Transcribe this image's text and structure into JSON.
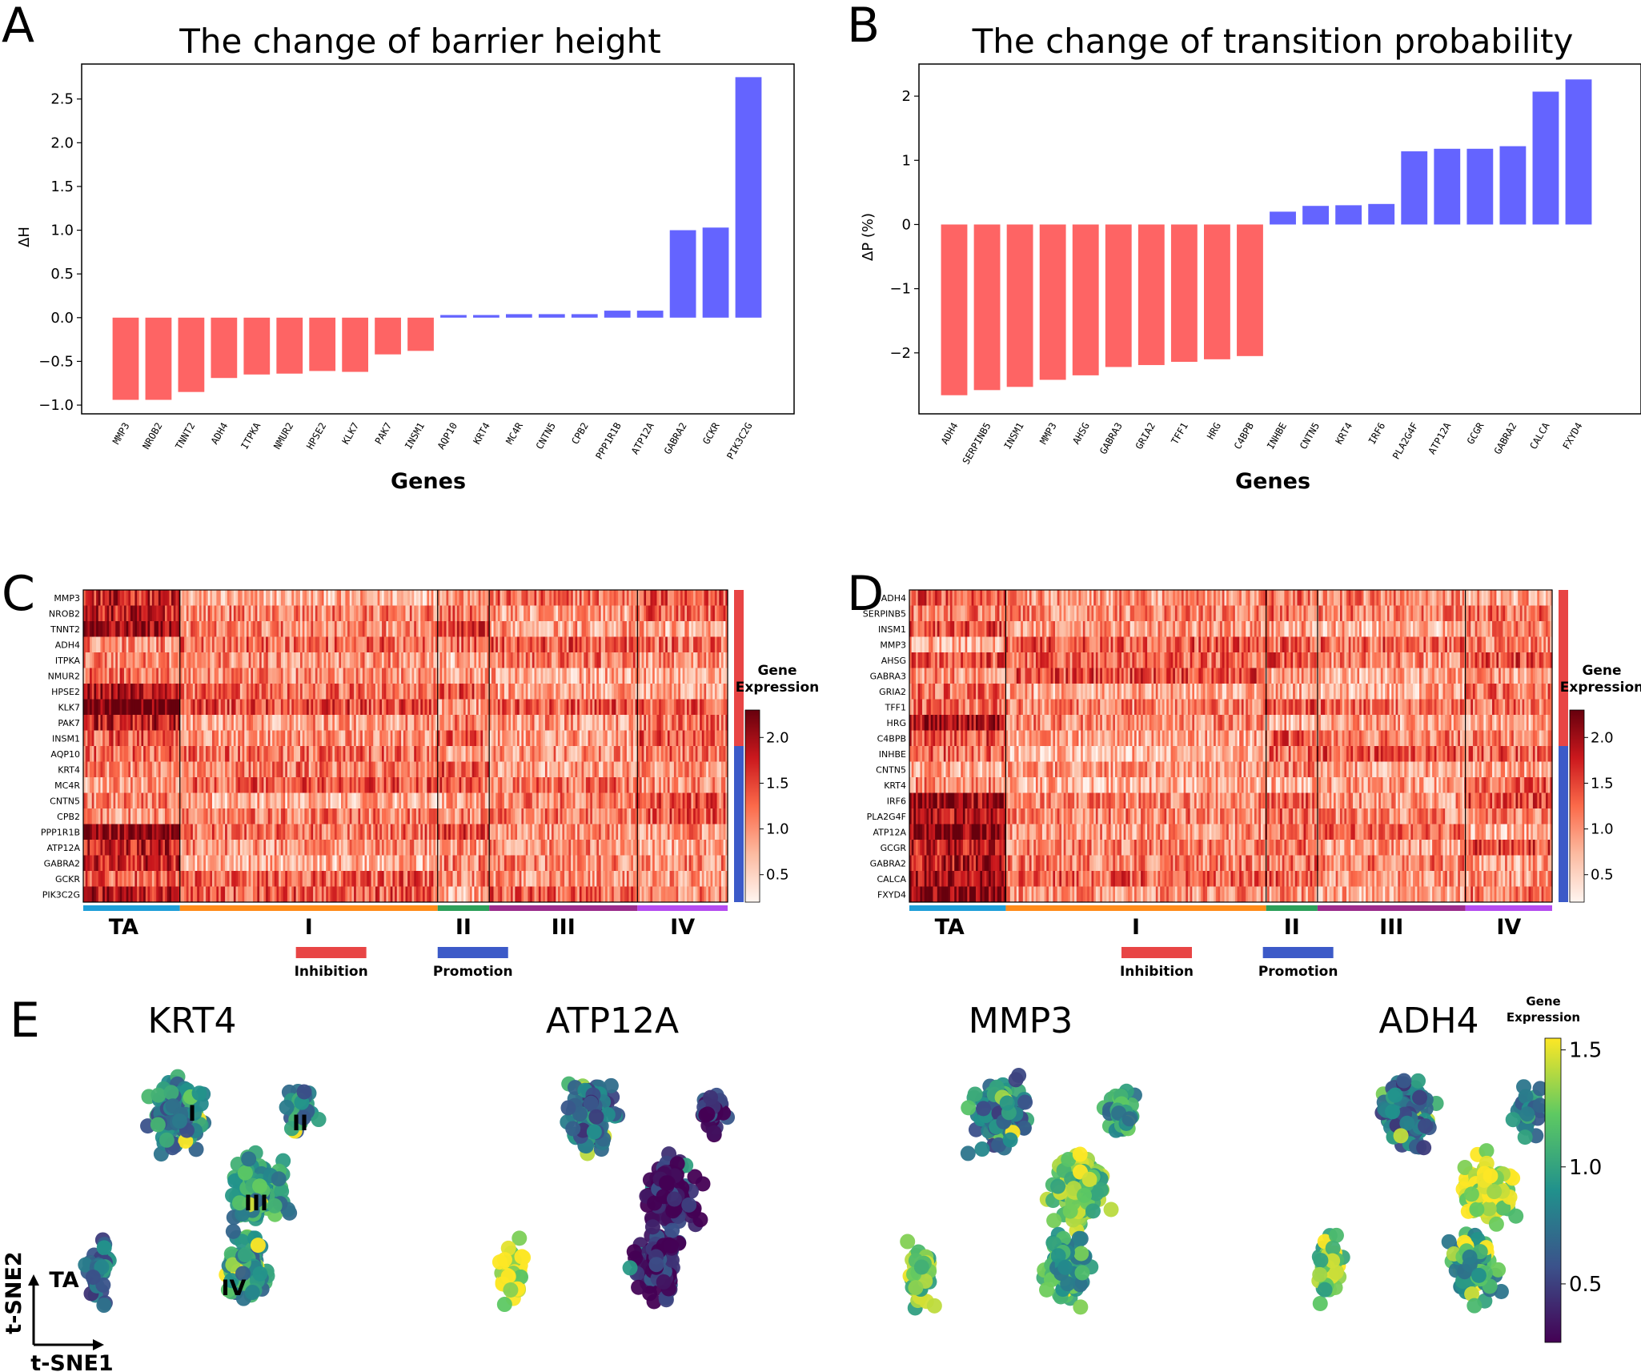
{
  "colors": {
    "negative": "#fe6464",
    "positive": "#6464ff",
    "ta": "#1f9fd8",
    "c1": "#ff8c1a",
    "c2": "#2ca05a",
    "c3": "#9b2c8c",
    "c4": "#b44cf0",
    "inhibition": "#e84545",
    "promotion": "#3c5ac8"
  },
  "panels": {
    "a": "A",
    "b": "B",
    "c": "C",
    "d": "D",
    "e": "E"
  },
  "chart_data": [
    {
      "id": "A",
      "type": "bar",
      "title": "The change of barrier height",
      "xlabel": "Genes",
      "ylabel": "ΔH",
      "ylim": [
        -1.1,
        2.9
      ],
      "yticks": [
        -1.0,
        -0.5,
        0.0,
        0.5,
        1.0,
        1.5,
        2.0,
        2.5
      ],
      "ytick_labels": [
        "−1.0",
        "−0.5",
        "0.0",
        "0.5",
        "1.0",
        "1.5",
        "2.0",
        "2.5"
      ],
      "categories": [
        "MMP3",
        "NROB2",
        "TNNT2",
        "ADH4",
        "ITPKA",
        "NMUR2",
        "HPSE2",
        "KLK7",
        "PAK7",
        "INSM1",
        "AQP10",
        "KRT4",
        "MC4R",
        "CNTN5",
        "CPB2",
        "PPP1R1B",
        "ATP12A",
        "GABRA2",
        "GCKR",
        "PIK3C2G"
      ],
      "values": [
        -0.94,
        -0.94,
        -0.85,
        -0.69,
        -0.65,
        -0.64,
        -0.61,
        -0.62,
        -0.42,
        -0.38,
        0.03,
        0.03,
        0.04,
        0.04,
        0.04,
        0.08,
        0.08,
        1.0,
        1.03,
        2.75
      ]
    },
    {
      "id": "B",
      "type": "bar",
      "title": "The change of transition probability",
      "xlabel": "Genes",
      "ylabel": "ΔP (%)",
      "ylim": [
        -2.95,
        2.5
      ],
      "yticks": [
        -2,
        -1,
        0,
        1,
        2
      ],
      "ytick_labels": [
        "−2",
        "−1",
        "0",
        "1",
        "2"
      ],
      "categories": [
        "ADH4",
        "SERPINB5",
        "INSM1",
        "MMP3",
        "AHSG",
        "GABRA3",
        "GRIA2",
        "TFF1",
        "HRG",
        "C4BPB",
        "INHBE",
        "CNTN5",
        "KRT4",
        "IRF6",
        "PLA2G4F",
        "ATP12A",
        "GCGR",
        "GABRA2",
        "CALCA",
        "FXYD4"
      ],
      "values": [
        -2.66,
        -2.58,
        -2.53,
        -2.42,
        -2.35,
        -2.22,
        -2.19,
        -2.14,
        -2.1,
        -2.05,
        0.2,
        0.29,
        0.3,
        0.32,
        1.14,
        1.18,
        1.18,
        1.22,
        2.07,
        2.26
      ]
    },
    {
      "id": "C",
      "type": "heatmap",
      "genes": [
        "MMP3",
        "NROB2",
        "TNNT2",
        "ADH4",
        "ITPKA",
        "NMUR2",
        "HPSE2",
        "KLK7",
        "PAK7",
        "INSM1",
        "AQP10",
        "KRT4",
        "MC4R",
        "CNTN5",
        "CPB2",
        "PPP1R1B",
        "ATP12A",
        "GABRA2",
        "GCKR",
        "PIK3C2G"
      ],
      "clusters": [
        "TA",
        "I",
        "II",
        "III",
        "IV"
      ],
      "cluster_fractions": [
        0.15,
        0.4,
        0.08,
        0.23,
        0.14
      ],
      "colorbar_title": [
        "Gene",
        "Expression"
      ],
      "colorbar_ticks": [
        "0.5",
        "1.0",
        "1.5",
        "2.0"
      ],
      "colorbar_range": [
        0.2,
        2.3
      ],
      "n_inhibition": 10,
      "legend": [
        "Inhibition",
        "Promotion"
      ]
    },
    {
      "id": "D",
      "type": "heatmap",
      "genes": [
        "ADH4",
        "SERPINB5",
        "INSM1",
        "MMP3",
        "AHSG",
        "GABRA3",
        "GRIA2",
        "TFF1",
        "HRG",
        "C4BPB",
        "INHBE",
        "CNTN5",
        "KRT4",
        "IRF6",
        "PLA2G4F",
        "ATP12A",
        "GCGR",
        "GABRA2",
        "CALCA",
        "FXYD4"
      ],
      "clusters": [
        "TA",
        "I",
        "II",
        "III",
        "IV"
      ],
      "cluster_fractions": [
        0.15,
        0.405,
        0.08,
        0.23,
        0.135
      ],
      "colorbar_title": [
        "Gene",
        "Expression"
      ],
      "colorbar_ticks": [
        "0.5",
        "1.0",
        "1.5",
        "2.0"
      ],
      "colorbar_range": [
        0.2,
        2.3
      ],
      "n_inhibition": 10,
      "legend": [
        "Inhibition",
        "Promotion"
      ]
    },
    {
      "id": "E",
      "type": "scatter",
      "genes": [
        "KRT4",
        "ATP12A",
        "MMP3",
        "ADH4"
      ],
      "cluster_labels": [
        "I",
        "II",
        "III",
        "IV",
        "TA"
      ],
      "axis_labels": [
        "t-SNE1",
        "t-SNE2"
      ],
      "colorbar_title": [
        "Gene",
        "Expression"
      ],
      "colorbar_ticks": [
        "0.5",
        "1.0",
        "1.5"
      ],
      "colorbar_range": [
        0.25,
        1.55
      ]
    }
  ]
}
